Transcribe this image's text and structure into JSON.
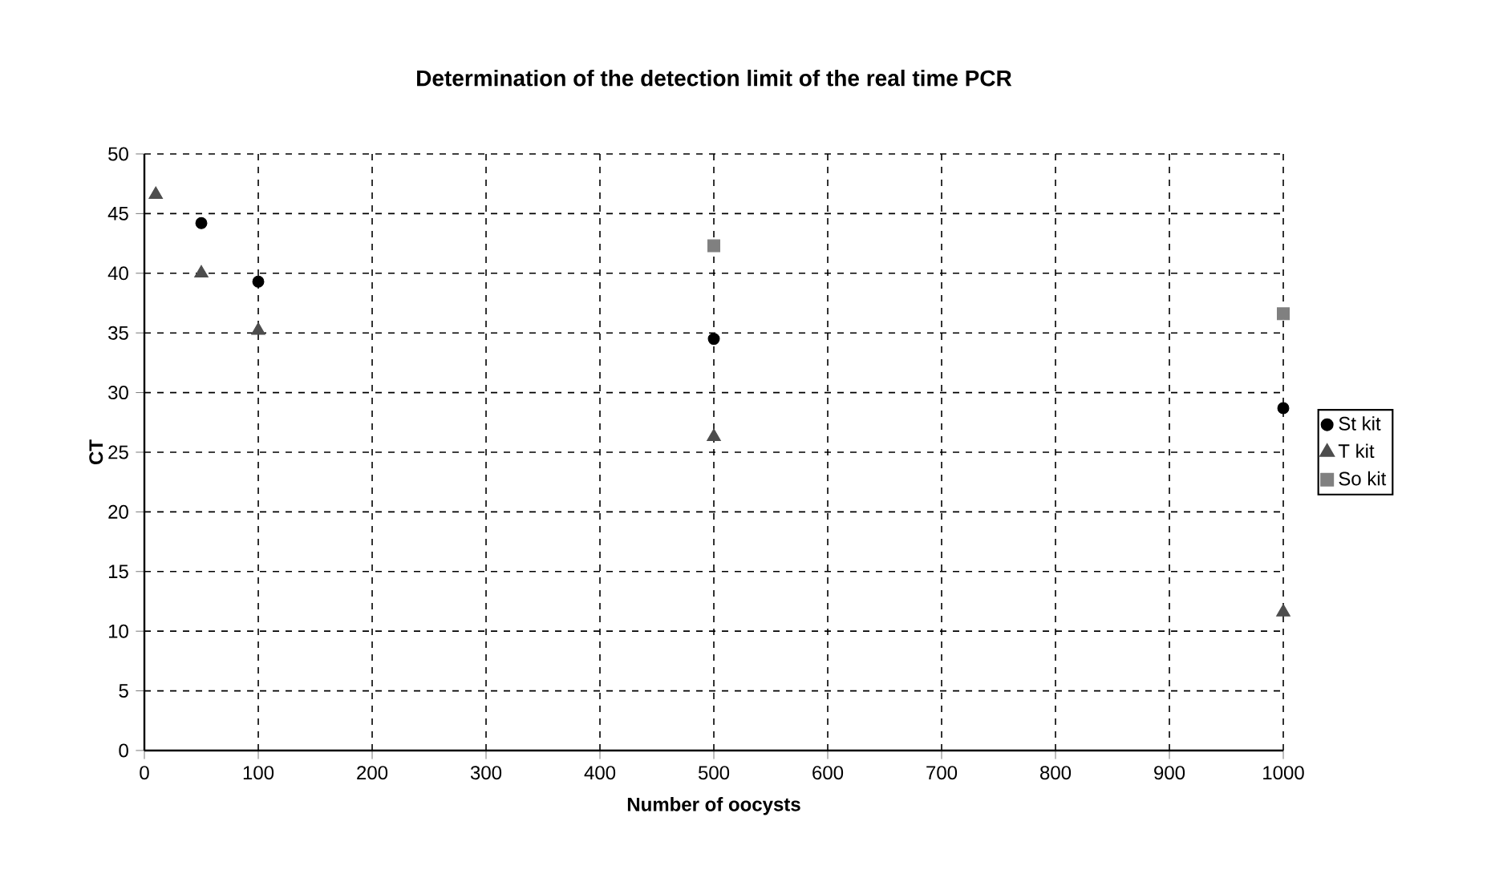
{
  "chart_data": {
    "type": "scatter",
    "title": "Determination of the detection limit of the real time PCR",
    "xlabel": "Number of oocysts",
    "ylabel": "CT",
    "xlim": [
      0,
      1000
    ],
    "xticks": [
      0,
      100,
      200,
      300,
      400,
      500,
      600,
      700,
      800,
      900,
      1000
    ],
    "ylim": [
      0,
      50
    ],
    "yticks": [
      0,
      5,
      10,
      15,
      20,
      25,
      30,
      35,
      40,
      45,
      50
    ],
    "grid": true,
    "legend": "right",
    "series": [
      {
        "name": "St kit",
        "color": "#000000",
        "marker": "circle",
        "x": [
          50,
          100,
          500,
          1000
        ],
        "values": [
          44.2,
          39.3,
          34.5,
          28.7
        ]
      },
      {
        "name": "T kit",
        "color": "#4d4d4d",
        "marker": "triangle",
        "x": [
          10,
          50,
          100,
          500,
          1000
        ],
        "values": [
          46.6,
          40,
          35.2,
          26.3,
          11.6
        ]
      },
      {
        "name": "So kit",
        "color": "#808080",
        "marker": "square",
        "x": [
          500,
          1000
        ],
        "values": [
          42.3,
          36.6
        ]
      }
    ]
  }
}
